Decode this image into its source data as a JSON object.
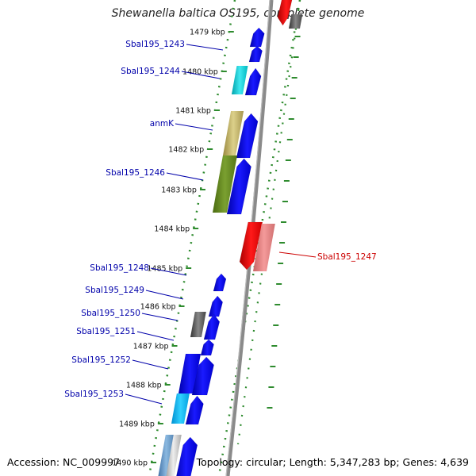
{
  "title": "Shewanella baltica OS195, complete genome",
  "accession": "Accession: NC_009997",
  "topology": "Topology: circular; Length: 5,347,283 bp; Genes: 4,639",
  "colors": {
    "backbone": "#8a8a8a",
    "tick": "#2e8b2e",
    "label_left": "#0000aa",
    "label_right": "#cc0000",
    "forward_gene": "#0000ee",
    "reverse_gene": "#ee0000"
  },
  "ticks": [
    {
      "label": "1479 kbp"
    },
    {
      "label": "1480 kbp"
    },
    {
      "label": "1481 kbp"
    },
    {
      "label": "1482 kbp"
    },
    {
      "label": "1483 kbp"
    },
    {
      "label": "1484 kbp"
    },
    {
      "label": "1485 kbp"
    },
    {
      "label": "1486 kbp"
    },
    {
      "label": "1487 kbp"
    },
    {
      "label": "1488 kbp"
    },
    {
      "label": "1489 kbp"
    },
    {
      "label": "1490 kbp"
    }
  ],
  "gene_labels": [
    {
      "name": "Sbal195_1243",
      "side": "left"
    },
    {
      "name": "Sbal195_1244",
      "side": "left"
    },
    {
      "name": "anmK",
      "side": "left"
    },
    {
      "name": "Sbal195_1246",
      "side": "left"
    },
    {
      "name": "Sbal195_1247",
      "side": "right"
    },
    {
      "name": "Sbal195_1248",
      "side": "left"
    },
    {
      "name": "Sbal195_1249",
      "side": "left"
    },
    {
      "name": "Sbal195_1250",
      "side": "left"
    },
    {
      "name": "Sbal195_1251",
      "side": "left"
    },
    {
      "name": "Sbal195_1252",
      "side": "left"
    },
    {
      "name": "Sbal195_1253",
      "side": "left"
    }
  ]
}
